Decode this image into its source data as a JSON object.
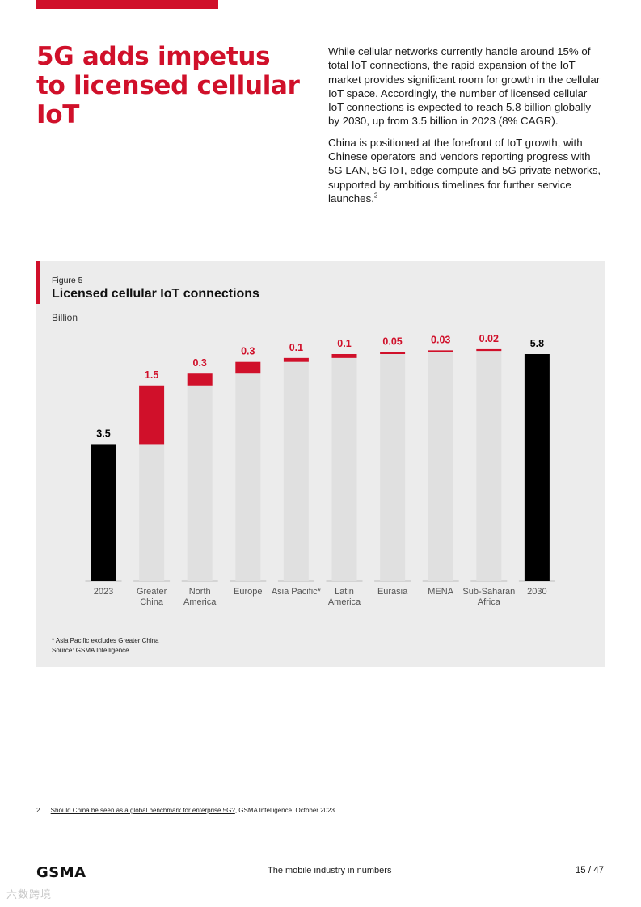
{
  "header": {
    "headline": "5G adds impetus to licensed cellular IoT",
    "paragraph1": "While cellular networks currently handle around 15% of total IoT connections, the rapid expansion of the IoT market provides significant room for growth in the cellular IoT space. Accordingly, the number of licensed cellular IoT connections is expected to reach 5.8 billion globally by 2030, up from 3.5 billion in 2023 (8% CAGR).",
    "paragraph2": "China is positioned at the forefront of IoT growth, with Chinese operators and vendors reporting progress with 5G LAN, 5G IoT, edge compute and 5G private networks, supported by ambitious timelines for further service launches.",
    "paragraph2_footnote_ref": "2"
  },
  "figure": {
    "label": "Figure 5",
    "title": "Licensed cellular IoT connections",
    "unit": "Billion",
    "footnote": "* Asia Pacific excludes Greater China",
    "source": "Source: GSMA Intelligence"
  },
  "chart_data": {
    "type": "waterfall",
    "title": "Licensed cellular IoT connections",
    "ylabel": "Billion",
    "ylim": [
      0,
      5.8
    ],
    "categories": [
      "2023",
      "Greater China",
      "North America",
      "Europe",
      "Asia Pacific*",
      "Latin America",
      "Eurasia",
      "MENA",
      "Sub-Saharan Africa",
      "2030"
    ],
    "category_lines": [
      [
        "2023"
      ],
      [
        "Greater",
        "China"
      ],
      [
        "North",
        "America"
      ],
      [
        "Europe"
      ],
      [
        "Asia Pacific*"
      ],
      [
        "Latin",
        "America"
      ],
      [
        "Eurasia"
      ],
      [
        "MENA"
      ],
      [
        "Sub-Saharan",
        "Africa"
      ],
      [
        "2030"
      ]
    ],
    "values": [
      3.5,
      1.5,
      0.3,
      0.3,
      0.1,
      0.1,
      0.05,
      0.03,
      0.02,
      5.8
    ],
    "value_labels": [
      "3.5",
      "1.5",
      "0.3",
      "0.3",
      "0.1",
      "0.1",
      "0.05",
      "0.03",
      "0.02",
      "5.8"
    ],
    "kinds": [
      "total",
      "increment",
      "increment",
      "increment",
      "increment",
      "increment",
      "increment",
      "increment",
      "increment",
      "total"
    ],
    "colors": {
      "total": "#000000",
      "increment": "#d0102a",
      "base": "#e0e0e0",
      "axis": "#bdbdbd",
      "tick_text": "#555555"
    }
  },
  "reference": {
    "number": "2.",
    "link_text": "Should China be seen as a global benchmark for enterprise 5G?",
    "rest": ", GSMA Intelligence, October 2023"
  },
  "footer": {
    "logo": "GSMA",
    "tagline": "The mobile industry in numbers",
    "page": "15 / 47"
  },
  "watermark": "六数跨境"
}
